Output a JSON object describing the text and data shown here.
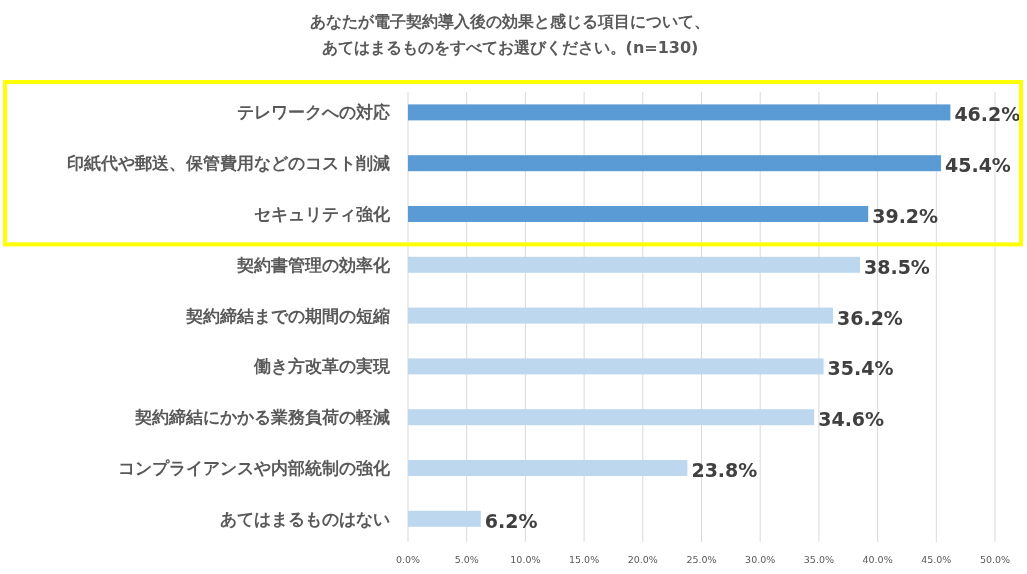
{
  "chart_data": {
    "type": "bar",
    "orientation": "horizontal",
    "title": "あなたが電子契約導入後の効果と感じる項目について、あてはまるものをすべてお選びください。(n=130)",
    "categories": [
      "テレワークへの対応",
      "印紙代や郵送、保管費用などのコスト削減",
      "セキュリティ強化",
      "契約書管理の効率化",
      "契約締結までの期間の短縮",
      "働き方改革の実現",
      "契約締結にかかる業務負荷の軽減",
      "コンプライアンスや内部統制の強化",
      "あてはまるものはない"
    ],
    "values": [
      46.2,
      45.4,
      39.2,
      38.5,
      36.2,
      35.4,
      34.6,
      23.8,
      6.2
    ],
    "colors": [
      "#5b9bd5",
      "#5b9bd5",
      "#5b9bd5",
      "#bdd7ee",
      "#bdd7ee",
      "#bdd7ee",
      "#bdd7ee",
      "#bdd7ee",
      "#bdd7ee"
    ],
    "value_labels": [
      "46.2%",
      "45.4%",
      "39.2%",
      "38.5%",
      "36.2%",
      "35.4%",
      "34.6%",
      "23.8%",
      "6.2%"
    ],
    "xlim": [
      0,
      50
    ],
    "xticks": [
      {
        "value": 0,
        "label": "0.0%"
      },
      {
        "value": 5,
        "label": "5.0%"
      },
      {
        "value": 10,
        "label": "10.0%"
      },
      {
        "value": 15,
        "label": "15.0%"
      },
      {
        "value": 20,
        "label": "20.0%"
      },
      {
        "value": 25,
        "label": "25.0%"
      },
      {
        "value": 30,
        "label": "30.0%"
      },
      {
        "value": 35,
        "label": "35.0%"
      },
      {
        "value": 40,
        "label": "40.0%"
      },
      {
        "value": 45,
        "label": "45.0%"
      },
      {
        "value": 50,
        "label": "50.0%"
      }
    ],
    "grid": "x"
  }
}
